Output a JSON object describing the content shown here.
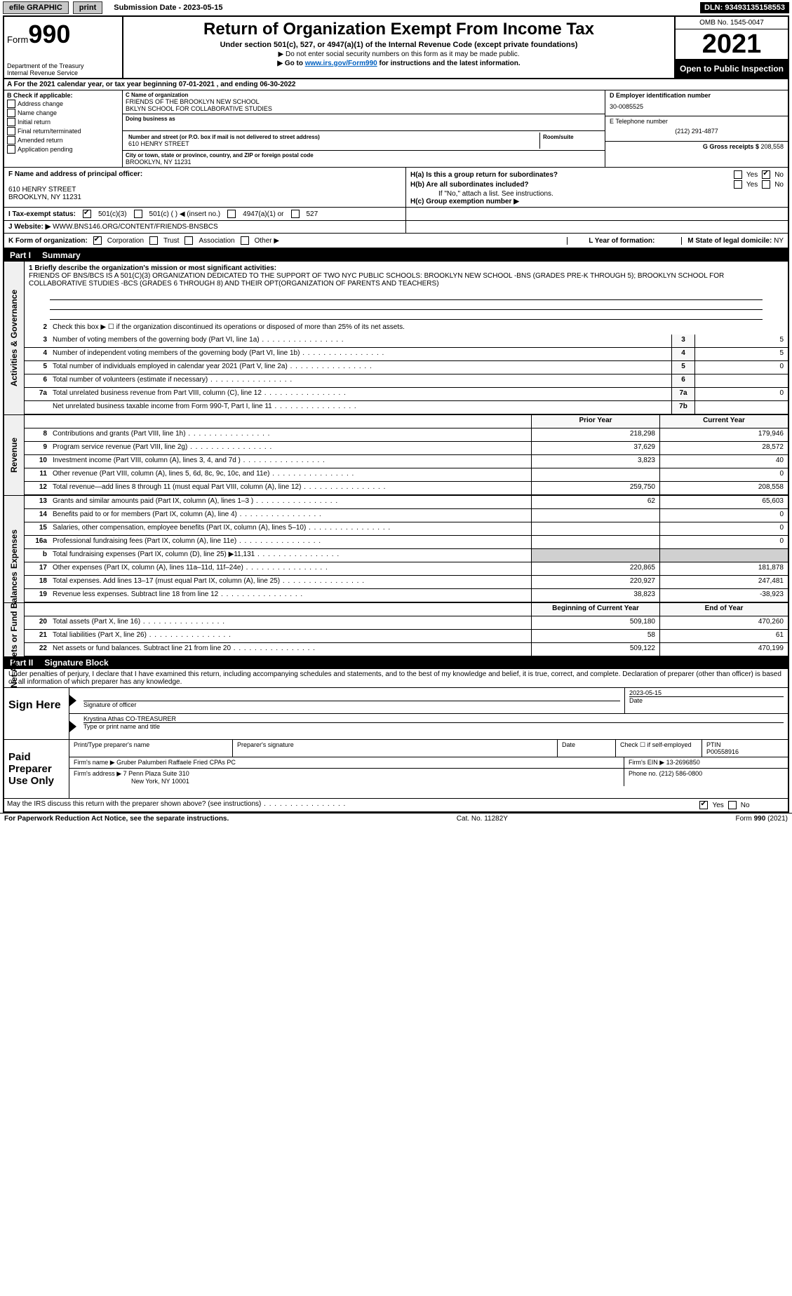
{
  "topbar": {
    "efile": "efile GRAPHIC",
    "print": "print",
    "sub_label": "Submission Date - 2023-05-15",
    "dln": "DLN: 93493135158553"
  },
  "header": {
    "form_prefix": "Form",
    "form_number": "990",
    "title": "Return of Organization Exempt From Income Tax",
    "subtitle": "Under section 501(c), 527, or 4947(a)(1) of the Internal Revenue Code (except private foundations)",
    "note1": "▶ Do not enter social security numbers on this form as it may be made public.",
    "note2_pre": "▶ Go to ",
    "note2_link": "www.irs.gov/Form990",
    "note2_post": " for instructions and the latest information.",
    "dept": "Department of the Treasury",
    "irs": "Internal Revenue Service",
    "omb": "OMB No. 1545-0047",
    "year": "2021",
    "open": "Open to Public Inspection"
  },
  "rowA": {
    "text_pre": "A For the 2021 calendar year, or tax year beginning ",
    "begin": "07-01-2021",
    "mid": " , and ending ",
    "end": "06-30-2022"
  },
  "colB": {
    "label": "B Check if applicable:",
    "items": [
      "Address change",
      "Name change",
      "Initial return",
      "Final return/terminated",
      "Amended return",
      "Application pending"
    ]
  },
  "colC": {
    "name_label": "C Name of organization",
    "name1": "FRIENDS OF THE BROOKLYN NEW SCHOOL",
    "name2": "BKLYN SCHOOL FOR COLLABORATIVE STUDIES",
    "dba_label": "Doing business as",
    "street_label": "Number and street (or P.O. box if mail is not delivered to street address)",
    "room_label": "Room/suite",
    "street": "610 HENRY STREET",
    "city_label": "City or town, state or province, country, and ZIP or foreign postal code",
    "city": "BROOKLYN, NY  11231"
  },
  "colD": {
    "d_label": "D Employer identification number",
    "ein": "30-0085525",
    "e_label": "E Telephone number",
    "phone": "(212) 291-4877",
    "g_label": "G Gross receipts $ ",
    "g_val": "208,558"
  },
  "rowF": {
    "label": "F Name and address of principal officer:",
    "addr1": "610 HENRY STREET",
    "addr2": "BROOKLYN, NY  11231",
    "ha": "H(a)  Is this a group return for subordinates?",
    "hb": "H(b)  Are all subordinates included?",
    "hb_note": "If \"No,\" attach a list. See instructions.",
    "hc": "H(c)  Group exemption number ▶",
    "yes": "Yes",
    "no": "No"
  },
  "rowI": {
    "label": "I  Tax-exempt status:",
    "opt1": "501(c)(3)",
    "opt2": "501(c) (   ) ◀ (insert no.)",
    "opt3": "4947(a)(1) or",
    "opt4": "527"
  },
  "rowJ": {
    "label": "J  Website: ▶",
    "val": " WWW.BNS146.ORG/CONTENT/FRIENDS-BNSBCS"
  },
  "rowK": {
    "label": "K Form of organization:",
    "opts": [
      "Corporation",
      "Trust",
      "Association",
      "Other ▶"
    ],
    "l_label": "L Year of formation:",
    "m_label": "M State of legal domicile: ",
    "m_val": "NY"
  },
  "part1": {
    "tag": "Part I",
    "title": "Summary",
    "side1": "Activities & Governance",
    "side2": "Revenue",
    "side3": "Expenses",
    "side4": "Net Assets or Fund Balances",
    "l1_label": "1  Briefly describe the organization's mission or most significant activities:",
    "l1_text": "FRIENDS OF BNS/BCS IS A 501(C)(3) ORGANIZATION DEDICATED TO THE SUPPORT OF TWO NYC PUBLIC SCHOOLS: BROOKLYN NEW SCHOOL -BNS (GRADES PRE-K THROUGH 5); BROOKLYN SCHOOL FOR COLLABORATIVE STUDIES -BCS (GRADES 6 THROUGH 8) AND THEIR OPT(ORGANIZATION OF PARENTS AND TEACHERS)",
    "l2": "Check this box ▶ ☐ if the organization discontinued its operations or disposed of more than 25% of its net assets.",
    "rows_gov": [
      {
        "n": "3",
        "t": "Number of voting members of the governing body (Part VI, line 1a)",
        "box": "3",
        "v": "5"
      },
      {
        "n": "4",
        "t": "Number of independent voting members of the governing body (Part VI, line 1b)",
        "box": "4",
        "v": "5"
      },
      {
        "n": "5",
        "t": "Total number of individuals employed in calendar year 2021 (Part V, line 2a)",
        "box": "5",
        "v": "0"
      },
      {
        "n": "6",
        "t": "Total number of volunteers (estimate if necessary)",
        "box": "6",
        "v": ""
      },
      {
        "n": "7a",
        "t": "Total unrelated business revenue from Part VIII, column (C), line 12",
        "box": "7a",
        "v": "0"
      },
      {
        "n": "",
        "t": "Net unrelated business taxable income from Form 990-T, Part I, line 11",
        "box": "7b",
        "v": ""
      }
    ],
    "col_prior": "Prior Year",
    "col_current": "Current Year",
    "rows_rev": [
      {
        "n": "8",
        "t": "Contributions and grants (Part VIII, line 1h)",
        "p": "218,298",
        "c": "179,946"
      },
      {
        "n": "9",
        "t": "Program service revenue (Part VIII, line 2g)",
        "p": "37,629",
        "c": "28,572"
      },
      {
        "n": "10",
        "t": "Investment income (Part VIII, column (A), lines 3, 4, and 7d )",
        "p": "3,823",
        "c": "40"
      },
      {
        "n": "11",
        "t": "Other revenue (Part VIII, column (A), lines 5, 6d, 8c, 9c, 10c, and 11e)",
        "p": "",
        "c": "0"
      },
      {
        "n": "12",
        "t": "Total revenue—add lines 8 through 11 (must equal Part VIII, column (A), line 12)",
        "p": "259,750",
        "c": "208,558"
      }
    ],
    "rows_exp": [
      {
        "n": "13",
        "t": "Grants and similar amounts paid (Part IX, column (A), lines 1–3 )",
        "p": "62",
        "c": "65,603"
      },
      {
        "n": "14",
        "t": "Benefits paid to or for members (Part IX, column (A), line 4)",
        "p": "",
        "c": "0"
      },
      {
        "n": "15",
        "t": "Salaries, other compensation, employee benefits (Part IX, column (A), lines 5–10)",
        "p": "",
        "c": "0"
      },
      {
        "n": "16a",
        "t": "Professional fundraising fees (Part IX, column (A), line 11e)",
        "p": "",
        "c": "0"
      },
      {
        "n": "b",
        "t": "Total fundraising expenses (Part IX, column (D), line 25) ▶11,131",
        "p": "GRAY",
        "c": "GRAY"
      },
      {
        "n": "17",
        "t": "Other expenses (Part IX, column (A), lines 11a–11d, 11f–24e)",
        "p": "220,865",
        "c": "181,878"
      },
      {
        "n": "18",
        "t": "Total expenses. Add lines 13–17 (must equal Part IX, column (A), line 25)",
        "p": "220,927",
        "c": "247,481"
      },
      {
        "n": "19",
        "t": "Revenue less expenses. Subtract line 18 from line 12",
        "p": "38,823",
        "c": "-38,923"
      }
    ],
    "col_begin": "Beginning of Current Year",
    "col_end": "End of Year",
    "rows_net": [
      {
        "n": "20",
        "t": "Total assets (Part X, line 16)",
        "p": "509,180",
        "c": "470,260"
      },
      {
        "n": "21",
        "t": "Total liabilities (Part X, line 26)",
        "p": "58",
        "c": "61"
      },
      {
        "n": "22",
        "t": "Net assets or fund balances. Subtract line 21 from line 20",
        "p": "509,122",
        "c": "470,199"
      }
    ]
  },
  "part2": {
    "tag": "Part II",
    "title": "Signature Block",
    "perjury": "Under penalties of perjury, I declare that I have examined this return, including accompanying schedules and statements, and to the best of my knowledge and belief, it is true, correct, and complete. Declaration of preparer (other than officer) is based on all information of which preparer has any knowledge.",
    "sign_here": "Sign Here",
    "sig_officer": "Signature of officer",
    "sig_date": "2023-05-15",
    "date_label": "Date",
    "officer_name": "Krystina Athas CO-TREASURER",
    "type_name": "Type or print name and title",
    "paid": "Paid Preparer Use Only",
    "prep_name_label": "Print/Type preparer's name",
    "prep_sig_label": "Preparer's signature",
    "prep_date_label": "Date",
    "check_if": "Check ☐ if self-employed",
    "ptin_label": "PTIN",
    "ptin": "P00558916",
    "firm_name_label": "Firm's name    ▶",
    "firm_name": "Gruber Palumberi Raffaele Fried CPAs PC",
    "firm_ein_label": "Firm's EIN ▶",
    "firm_ein": "13-2696850",
    "firm_addr_label": "Firm's address ▶",
    "firm_addr1": "7 Penn Plaza Suite 310",
    "firm_addr2": "New York, NY  10001",
    "firm_phone_label": "Phone no. ",
    "firm_phone": "(212) 586-0800",
    "may_irs": "May the IRS discuss this return with the preparer shown above? (see instructions)",
    "yes": "Yes",
    "no": "No"
  },
  "footer": {
    "left": "For Paperwork Reduction Act Notice, see the separate instructions.",
    "mid": "Cat. No. 11282Y",
    "right": "Form 990 (2021)"
  }
}
